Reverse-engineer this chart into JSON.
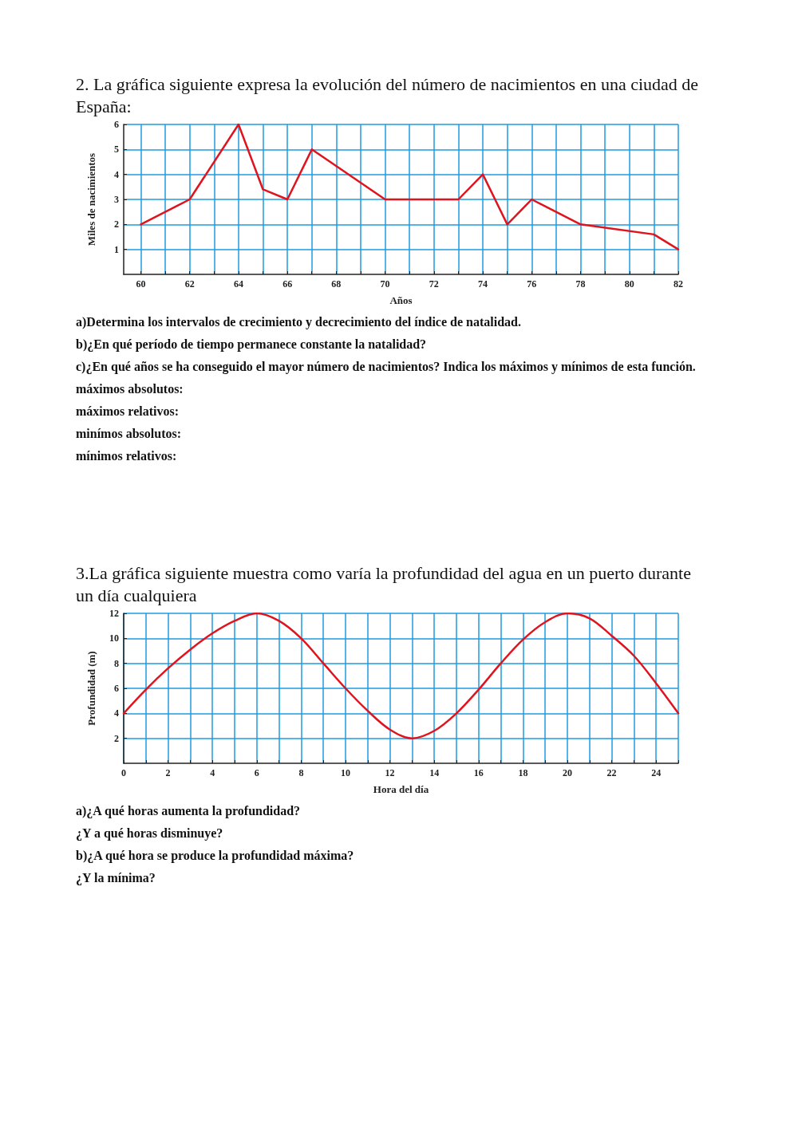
{
  "chart_data": [
    {
      "type": "line",
      "title": "2. La gráfica siguiente expresa la evolución del número de nacimientos en una ciudad de España:",
      "xlabel": "Años",
      "ylabel": "Miles de nacimientos",
      "x": [
        60,
        62,
        64,
        65,
        66,
        67,
        70,
        73,
        74,
        75,
        76,
        78,
        81,
        82
      ],
      "series": [
        {
          "color": "#e0141e",
          "values": [
            2,
            3,
            6,
            3.4,
            3,
            5,
            3,
            3,
            4,
            2,
            3,
            2,
            1.6,
            1
          ]
        }
      ],
      "xlim": [
        59.3,
        82
      ],
      "xticks": [
        60,
        {
          "value": 61,
          "label": null
        },
        62,
        {
          "value": 63,
          "label": null
        },
        64,
        {
          "value": 65,
          "label": null
        },
        66,
        {
          "value": 67,
          "label": null
        },
        68,
        {
          "value": 69,
          "label": null
        },
        70,
        {
          "value": 71,
          "label": null
        },
        72,
        {
          "value": 73,
          "label": null
        },
        74,
        {
          "value": 75,
          "label": null
        },
        76,
        {
          "value": 77,
          "label": null
        },
        78,
        {
          "value": 79,
          "label": null
        },
        80,
        {
          "value": 81,
          "label": null
        },
        82
      ],
      "ylim": [
        0,
        6
      ],
      "yticks": [
        1,
        2,
        3,
        4,
        5,
        6
      ],
      "grid": true,
      "marker": "none",
      "line_style": "solid",
      "annotations": [
        "a)Determina los intervalos de crecimiento y decrecimiento del índice de natalidad.",
        "b)¿En qué período de tiempo permanece constante la natalidad?",
        "c)¿En qué años se ha conseguido el mayor número de nacimientos? Indica los máximos y mínimos de esta función.",
        "máximos absolutos:",
        "máximos relativos:",
        "minímos absolutos:",
        "mínimos relativos:"
      ]
    },
    {
      "type": "line",
      "title": "3.La gráfica siguiente muestra como varía la profundidad del agua en un puerto durante un día cualquiera",
      "xlabel": "Hora del día",
      "ylabel": "Profundidad (m)",
      "x": [
        0,
        1,
        2,
        3,
        4,
        5,
        6,
        7,
        8,
        9,
        10,
        11,
        12,
        13,
        14,
        15,
        16,
        17,
        18,
        19,
        20,
        21,
        22,
        23,
        24,
        25
      ],
      "series": [
        {
          "color": "#e0141e",
          "values": [
            4,
            5.9,
            7.6,
            9.1,
            10.4,
            11.4,
            12,
            11.4,
            10,
            8,
            6,
            4.2,
            2.7,
            2,
            2.6,
            4,
            5.9,
            8,
            9.9,
            11.3,
            12,
            11.6,
            10.2,
            8.6,
            6.4,
            4
          ]
        }
      ],
      "xlim": [
        0,
        25
      ],
      "xticks": [
        0,
        {
          "value": 1,
          "label": null
        },
        2,
        {
          "value": 3,
          "label": null
        },
        4,
        {
          "value": 5,
          "label": null
        },
        6,
        {
          "value": 7,
          "label": null
        },
        8,
        {
          "value": 9,
          "label": null
        },
        10,
        {
          "value": 11,
          "label": null
        },
        12,
        {
          "value": 13,
          "label": null
        },
        14,
        {
          "value": 15,
          "label": null
        },
        16,
        {
          "value": 17,
          "label": null
        },
        18,
        {
          "value": 19,
          "label": null
        },
        20,
        {
          "value": 21,
          "label": null
        },
        22,
        {
          "value": 23,
          "label": null
        },
        24,
        {
          "value": 25,
          "label": null
        }
      ],
      "ylim": [
        0,
        12
      ],
      "yticks": [
        2,
        4,
        6,
        8,
        10,
        12
      ],
      "grid": true,
      "marker": "none",
      "line_style": "solid",
      "annotations": [
        "a)¿A qué horas aumenta la profundidad?",
        "¿Y a qué horas disminuye?",
        "b)¿A qué hora se produce la profundidad máxima?",
        "¿Y la mínima?"
      ]
    }
  ]
}
